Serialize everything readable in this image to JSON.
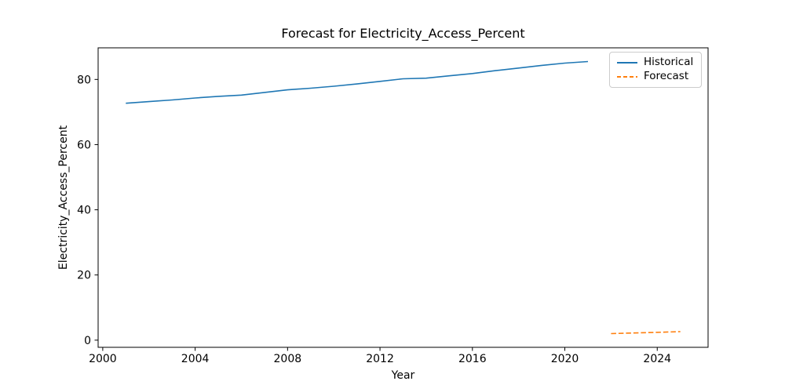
{
  "figure": {
    "background_color": "#ffffff",
    "text_color": "#000000",
    "spine_color": "#000000"
  },
  "chart_data": {
    "type": "line",
    "title": "Forecast for Electricity_Access_Percent",
    "xlabel": "Year",
    "ylabel": "Electricity_Access_Percent",
    "xlim": [
      1999.8,
      2026.2
    ],
    "ylim": [
      -2.2,
      89.7
    ],
    "x_ticks": [
      2000,
      2004,
      2008,
      2012,
      2016,
      2020,
      2024
    ],
    "y_ticks": [
      0,
      20,
      40,
      60,
      80
    ],
    "grid": false,
    "legend": {
      "position": "upper-right",
      "entries": [
        {
          "label": "Historical",
          "color": "#1f77b4",
          "style": "solid"
        },
        {
          "label": "Forecast",
          "color": "#ff7f0e",
          "style": "dashed"
        }
      ]
    },
    "series": [
      {
        "name": "Historical",
        "color": "#1f77b4",
        "style": "solid",
        "x": [
          2001,
          2002,
          2003,
          2004,
          2005,
          2006,
          2007,
          2008,
          2009,
          2010,
          2011,
          2012,
          2013,
          2014,
          2015,
          2016,
          2017,
          2018,
          2019,
          2020,
          2021
        ],
        "y": [
          72.7,
          73.2,
          73.7,
          74.3,
          74.8,
          75.2,
          76.0,
          76.8,
          77.3,
          77.9,
          78.6,
          79.4,
          80.2,
          80.4,
          81.1,
          81.8,
          82.7,
          83.5,
          84.3,
          85.0,
          85.5
        ]
      },
      {
        "name": "Forecast",
        "color": "#ff7f0e",
        "style": "dashed",
        "x": [
          2022,
          2023,
          2024,
          2025
        ],
        "y": [
          2.0,
          2.2,
          2.4,
          2.6
        ]
      }
    ]
  }
}
